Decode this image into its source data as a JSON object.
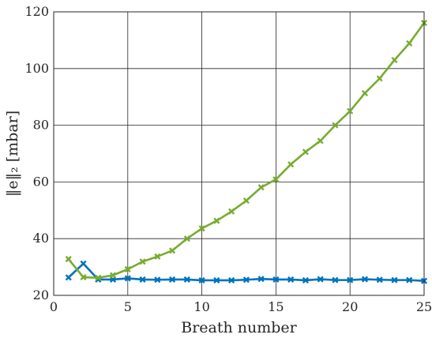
{
  "chart_data": {
    "type": "line",
    "xlabel": "Breath number",
    "ylabel": "‖e‖₂ [mbar]",
    "xlim": [
      0,
      25
    ],
    "ylim": [
      20,
      120
    ],
    "xticks": [
      0,
      5,
      10,
      15,
      20,
      25
    ],
    "yticks": [
      20,
      40,
      60,
      80,
      100,
      120
    ],
    "grid": true,
    "marker": "x",
    "x": [
      1,
      2,
      3,
      4,
      5,
      6,
      7,
      8,
      9,
      10,
      11,
      12,
      13,
      14,
      15,
      16,
      17,
      18,
      19,
      20,
      21,
      22,
      23,
      24,
      25
    ],
    "series": [
      {
        "color": "#0072BD",
        "values": [
          26.3,
          31.2,
          25.6,
          25.6,
          26.0,
          25.6,
          25.5,
          25.6,
          25.6,
          25.3,
          25.3,
          25.3,
          25.5,
          25.8,
          25.6,
          25.6,
          25.3,
          25.7,
          25.4,
          25.4,
          25.7,
          25.5,
          25.4,
          25.4,
          25.1
        ]
      },
      {
        "color": "#77AC30",
        "values": [
          32.8,
          26.4,
          26.2,
          27.1,
          29.2,
          31.9,
          33.7,
          35.8,
          40.0,
          43.6,
          46.3,
          49.6,
          53.4,
          58.1,
          60.9,
          66.2,
          70.6,
          74.5,
          80.0,
          85.0,
          91.3,
          96.5,
          103.0,
          108.9,
          116.1
        ]
      }
    ]
  }
}
